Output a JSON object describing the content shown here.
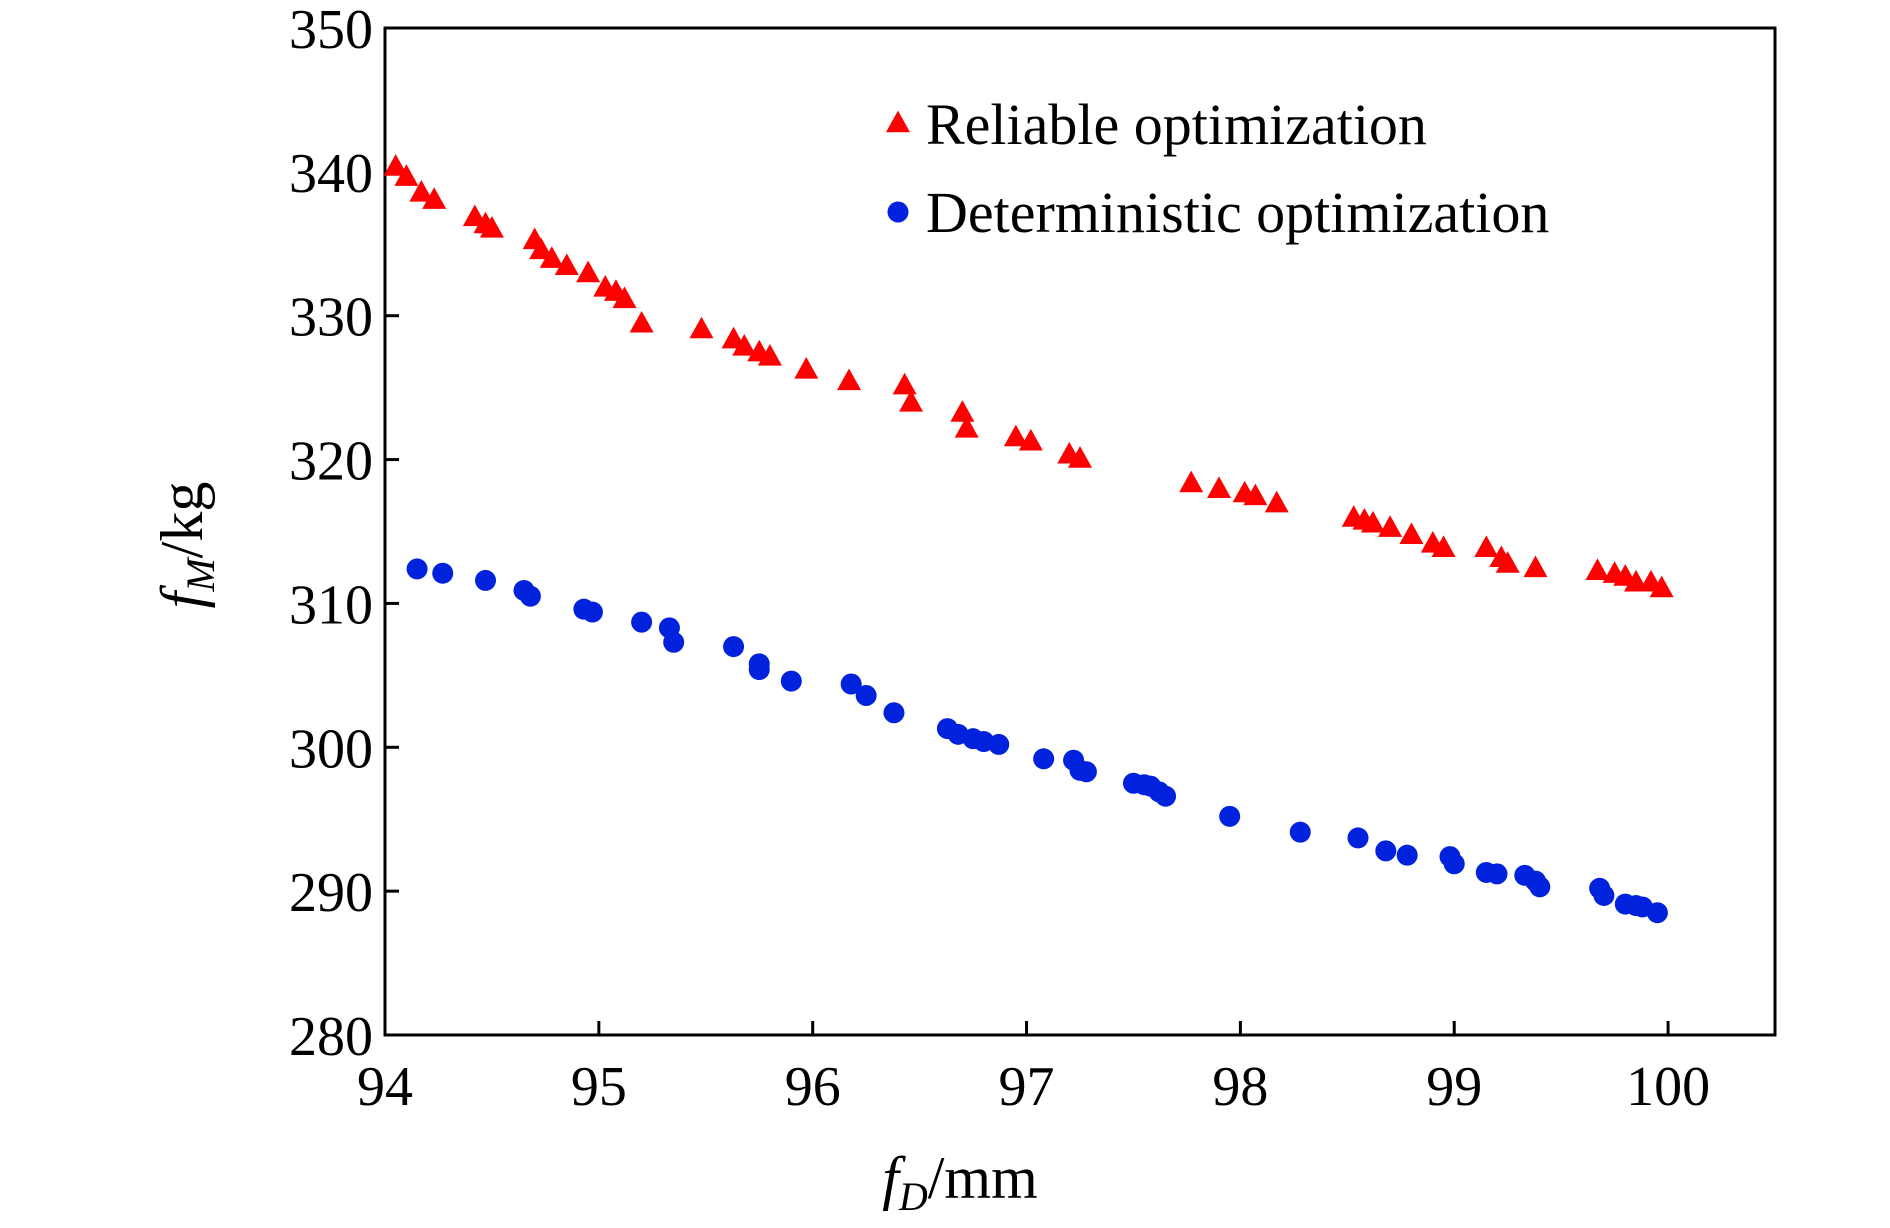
{
  "chart_data": {
    "type": "scatter",
    "title": "",
    "xlabel": {
      "symbol": "f",
      "subscript": "D",
      "unit": "/mm"
    },
    "ylabel": {
      "symbol": "f",
      "subscript": "M",
      "unit": "/kg"
    },
    "xlim": [
      94,
      100.5
    ],
    "ylim": [
      280,
      350
    ],
    "xticks": [
      94,
      95,
      96,
      97,
      98,
      99,
      100
    ],
    "yticks": [
      280,
      290,
      300,
      310,
      320,
      330,
      340,
      350
    ],
    "grid": false,
    "legend_position": "top-right",
    "series": [
      {
        "name": "Reliable optimization",
        "marker": "triangle",
        "color": "#ff0000",
        "points": [
          [
            94.05,
            340.3
          ],
          [
            94.1,
            339.6
          ],
          [
            94.17,
            338.5
          ],
          [
            94.23,
            338.0
          ],
          [
            94.42,
            336.8
          ],
          [
            94.47,
            336.3
          ],
          [
            94.5,
            336.0
          ],
          [
            94.7,
            335.2
          ],
          [
            94.73,
            334.5
          ],
          [
            94.78,
            333.9
          ],
          [
            94.85,
            333.4
          ],
          [
            94.95,
            332.9
          ],
          [
            95.03,
            331.9
          ],
          [
            95.08,
            331.6
          ],
          [
            95.12,
            331.1
          ],
          [
            95.2,
            329.4
          ],
          [
            95.48,
            329.0
          ],
          [
            95.63,
            328.3
          ],
          [
            95.68,
            327.8
          ],
          [
            95.75,
            327.4
          ],
          [
            95.8,
            327.1
          ],
          [
            95.97,
            326.2
          ],
          [
            96.17,
            325.4
          ],
          [
            96.43,
            325.1
          ],
          [
            96.46,
            323.9
          ],
          [
            96.7,
            323.2
          ],
          [
            96.72,
            322.1
          ],
          [
            96.95,
            321.5
          ],
          [
            97.02,
            321.2
          ],
          [
            97.2,
            320.3
          ],
          [
            97.25,
            320.0
          ],
          [
            97.77,
            318.3
          ],
          [
            97.9,
            317.9
          ],
          [
            98.02,
            317.6
          ],
          [
            98.07,
            317.4
          ],
          [
            98.17,
            316.9
          ],
          [
            98.53,
            315.9
          ],
          [
            98.58,
            315.7
          ],
          [
            98.62,
            315.5
          ],
          [
            98.7,
            315.2
          ],
          [
            98.8,
            314.7
          ],
          [
            98.9,
            314.1
          ],
          [
            98.95,
            313.8
          ],
          [
            99.15,
            313.8
          ],
          [
            99.22,
            313.1
          ],
          [
            99.25,
            312.7
          ],
          [
            99.38,
            312.4
          ],
          [
            99.67,
            312.2
          ],
          [
            99.75,
            312.0
          ],
          [
            99.8,
            311.8
          ],
          [
            99.85,
            311.4
          ],
          [
            99.92,
            311.4
          ],
          [
            99.97,
            311.0
          ]
        ]
      },
      {
        "name": "Deterministic optimization",
        "marker": "circle",
        "color": "#0022dd",
        "points": [
          [
            94.15,
            312.4
          ],
          [
            94.27,
            312.1
          ],
          [
            94.47,
            311.6
          ],
          [
            94.65,
            310.9
          ],
          [
            94.68,
            310.5
          ],
          [
            94.93,
            309.6
          ],
          [
            94.97,
            309.4
          ],
          [
            95.2,
            308.7
          ],
          [
            95.33,
            308.3
          ],
          [
            95.35,
            307.3
          ],
          [
            95.63,
            307.0
          ],
          [
            95.75,
            305.8
          ],
          [
            95.75,
            305.4
          ],
          [
            95.9,
            304.6
          ],
          [
            96.18,
            304.4
          ],
          [
            96.25,
            303.6
          ],
          [
            96.38,
            302.4
          ],
          [
            96.63,
            301.3
          ],
          [
            96.68,
            300.9
          ],
          [
            96.75,
            300.6
          ],
          [
            96.8,
            300.4
          ],
          [
            96.87,
            300.2
          ],
          [
            97.08,
            299.2
          ],
          [
            97.22,
            299.1
          ],
          [
            97.25,
            298.4
          ],
          [
            97.28,
            298.3
          ],
          [
            97.5,
            297.5
          ],
          [
            97.55,
            297.4
          ],
          [
            97.58,
            297.3
          ],
          [
            97.62,
            296.9
          ],
          [
            97.65,
            296.6
          ],
          [
            97.95,
            295.2
          ],
          [
            98.28,
            294.1
          ],
          [
            98.55,
            293.7
          ],
          [
            98.68,
            292.8
          ],
          [
            98.78,
            292.5
          ],
          [
            98.98,
            292.4
          ],
          [
            99.0,
            291.9
          ],
          [
            99.15,
            291.3
          ],
          [
            99.2,
            291.2
          ],
          [
            99.33,
            291.1
          ],
          [
            99.38,
            290.7
          ],
          [
            99.4,
            290.3
          ],
          [
            99.68,
            290.2
          ],
          [
            99.7,
            289.7
          ],
          [
            99.8,
            289.1
          ],
          [
            99.85,
            289.0
          ],
          [
            99.88,
            288.9
          ],
          [
            99.95,
            288.5
          ]
        ]
      }
    ]
  }
}
